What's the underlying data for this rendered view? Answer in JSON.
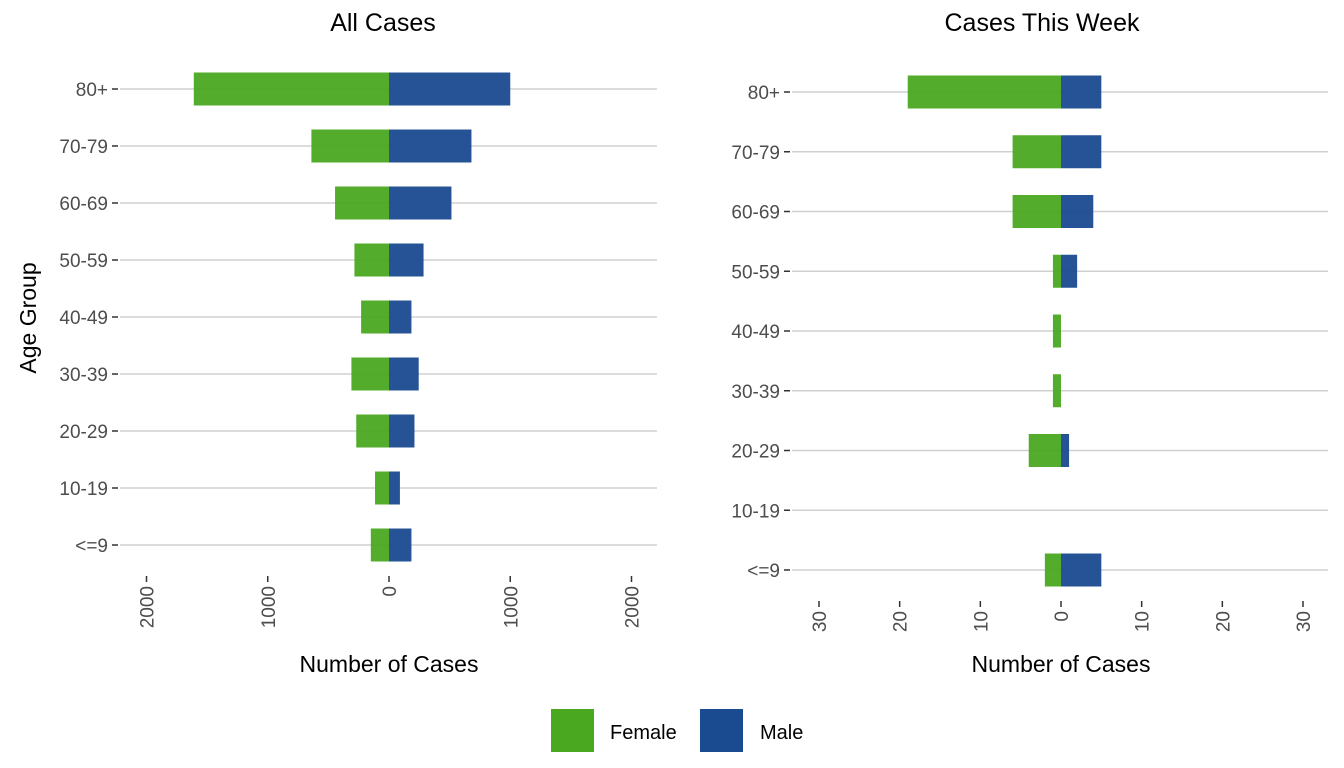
{
  "colors": {
    "female": "#4aa820",
    "male": "#1a4a8f"
  },
  "y_axis_label": "Age Group",
  "legend": {
    "entries": [
      {
        "key": "female",
        "label": "Female"
      },
      {
        "key": "male",
        "label": "Male"
      }
    ]
  },
  "chart_data": [
    {
      "type": "bar",
      "orientation": "horizontal-diverging",
      "title": "All Cases",
      "xlabel": "Number of Cases",
      "ylabel": "Age Group",
      "xlim": [
        -2000,
        2000
      ],
      "x_ticks": [
        -2000,
        -1000,
        0,
        1000,
        2000
      ],
      "x_tick_labels": [
        "2000",
        "1000",
        "0",
        "1000",
        "2000"
      ],
      "grid": "horizontal",
      "categories": [
        "80+",
        "70-79",
        "60-69",
        "50-59",
        "40-49",
        "30-39",
        "20-29",
        "10-19",
        "<=9"
      ],
      "series": [
        {
          "name": "Female",
          "key": "female",
          "values": [
            1610,
            640,
            445,
            285,
            230,
            310,
            270,
            115,
            150
          ]
        },
        {
          "name": "Male",
          "key": "male",
          "values": [
            1000,
            680,
            515,
            285,
            185,
            245,
            210,
            90,
            185
          ]
        }
      ]
    },
    {
      "type": "bar",
      "orientation": "horizontal-diverging",
      "title": "Cases This Week",
      "xlabel": "Number of Cases",
      "ylabel": "",
      "xlim": [
        -30,
        30
      ],
      "x_ticks": [
        -30,
        -20,
        -10,
        0,
        10,
        20,
        30
      ],
      "x_tick_labels": [
        "30",
        "20",
        "10",
        "0",
        "10",
        "20",
        "30"
      ],
      "grid": "horizontal",
      "categories": [
        "80+",
        "70-79",
        "60-69",
        "50-59",
        "40-49",
        "30-39",
        "20-29",
        "10-19",
        "<=9"
      ],
      "series": [
        {
          "name": "Female",
          "key": "female",
          "values": [
            19,
            6,
            6,
            1,
            1,
            1,
            4,
            0,
            2
          ]
        },
        {
          "name": "Male",
          "key": "male",
          "values": [
            5,
            5,
            4,
            2,
            0,
            0,
            1,
            0,
            5
          ]
        }
      ]
    }
  ]
}
